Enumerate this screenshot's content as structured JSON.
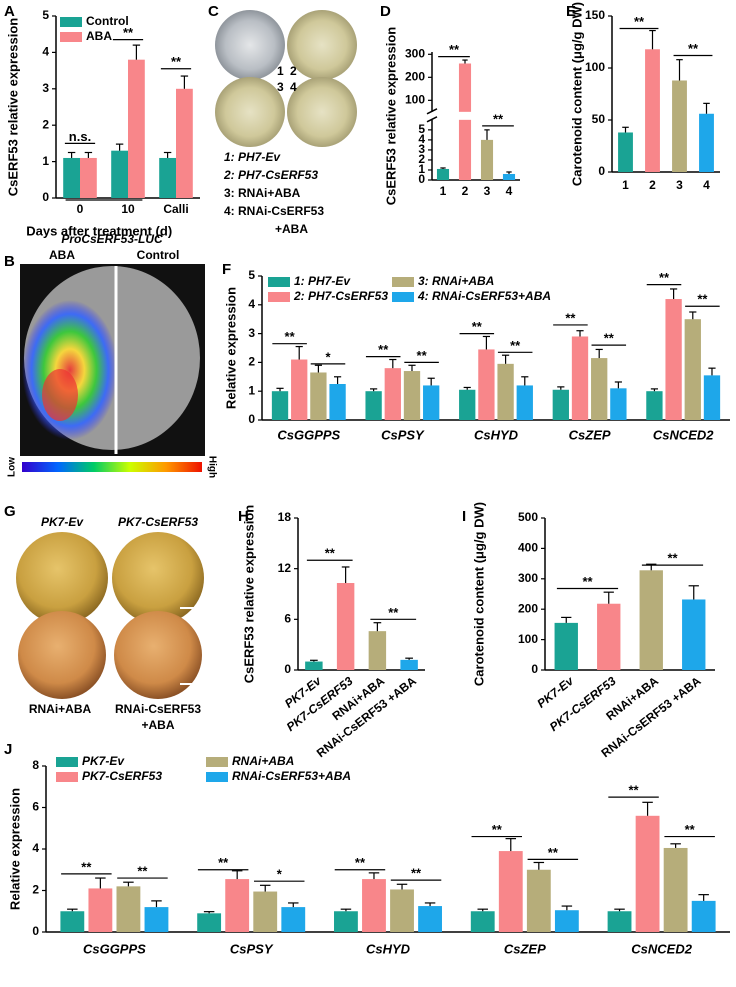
{
  "panels": {
    "B": {
      "panel": "B",
      "title": "ProCsERF53-LUC",
      "left": "ABA",
      "right": "Control",
      "scale_low": "Low",
      "scale_high": "High"
    },
    "C": {
      "panel": "C",
      "plate_numbers": [
        "1",
        "2",
        "3",
        "4"
      ],
      "legend": [
        "1: PH7-Ev",
        "2: PH7-CsERF53",
        "3: RNAi+ABA",
        "4: RNAi-CsERF53",
        "+ABA"
      ]
    },
    "G": {
      "panel": "G",
      "labels": [
        "PK7-Ev",
        "PK7-CsERF53",
        "RNAi+ABA",
        "RNAi-CsERF53",
        "+ABA"
      ]
    }
  },
  "chart_data": [
    {
      "panel": "A",
      "type": "bar",
      "categories": [
        "0",
        "10",
        "Calli"
      ],
      "xlabel": "Days after treatment (d)",
      "ylabel": "CsERF53 relative expression",
      "ylim": [
        0,
        5
      ],
      "yticks": [
        0,
        1,
        2,
        3,
        4,
        5
      ],
      "series": [
        {
          "name": "Control",
          "color": "#1aa394",
          "values": [
            1.1,
            1.3,
            1.1
          ],
          "errors": [
            0.15,
            0.18,
            0.15
          ]
        },
        {
          "name": "ABA",
          "color": "#f8868a",
          "values": [
            1.1,
            3.8,
            3.0
          ],
          "errors": [
            0.15,
            0.4,
            0.35
          ]
        }
      ],
      "annotations": [
        "n.s.",
        "**",
        "**"
      ]
    },
    {
      "panel": "D",
      "type": "bar",
      "categories": [
        "1",
        "2",
        "3",
        "4"
      ],
      "ylabel": "CsERF53 relative expression",
      "ylim": [
        0,
        310
      ],
      "axis_break": [
        6,
        50
      ],
      "yticks": [
        0,
        1,
        2,
        3,
        4,
        5,
        100,
        200,
        300
      ],
      "series": [
        {
          "colors": [
            "#1aa394",
            "#f8868a",
            "#b6ad7a",
            "#1ea7ea"
          ],
          "values": [
            1.1,
            260,
            4.0,
            0.6
          ],
          "errors": [
            0.1,
            15,
            1.0,
            0.2
          ]
        }
      ],
      "annotations": [
        "**",
        "**"
      ]
    },
    {
      "panel": "E",
      "type": "bar",
      "categories": [
        "1",
        "2",
        "3",
        "4"
      ],
      "ylabel": "Carotenoid content (μg/g DW)",
      "ylim": [
        0,
        150
      ],
      "yticks": [
        0,
        50,
        100,
        150
      ],
      "series": [
        {
          "colors": [
            "#1aa394",
            "#f8868a",
            "#b6ad7a",
            "#1ea7ea"
          ],
          "values": [
            38,
            118,
            88,
            56
          ],
          "errors": [
            5,
            18,
            20,
            10
          ]
        }
      ],
      "annotations": [
        "**",
        "**"
      ]
    },
    {
      "panel": "F",
      "type": "bar",
      "categories": [
        "CsGGPPS",
        "CsPSY",
        "CsHYD",
        "CsZEP",
        "CsNCED2"
      ],
      "ylabel": "Relative expression",
      "ylim": [
        0,
        5
      ],
      "yticks": [
        0,
        1,
        2,
        3,
        4,
        5
      ],
      "series": [
        {
          "name": "1: PH7-Ev",
          "color": "#1aa394",
          "values": [
            1.0,
            1.0,
            1.05,
            1.05,
            1.0
          ],
          "errors": [
            0.1,
            0.08,
            0.08,
            0.1,
            0.08
          ]
        },
        {
          "name": "2: PH7-CsERF53",
          "color": "#f8868a",
          "values": [
            2.1,
            1.8,
            2.45,
            2.9,
            4.2
          ],
          "errors": [
            0.45,
            0.3,
            0.45,
            0.2,
            0.35
          ]
        },
        {
          "name": "3: RNAi+ABA",
          "color": "#b6ad7a",
          "values": [
            1.65,
            1.7,
            1.95,
            2.15,
            3.5
          ],
          "errors": [
            0.25,
            0.2,
            0.3,
            0.3,
            0.25
          ]
        },
        {
          "name": "4: RNAi-CsERF53+ABA",
          "color": "#1ea7ea",
          "values": [
            1.25,
            1.2,
            1.2,
            1.1,
            1.55
          ],
          "errors": [
            0.25,
            0.25,
            0.3,
            0.22,
            0.25
          ]
        }
      ],
      "annotations": [
        "**",
        "*",
        "**",
        "**",
        "**",
        "**",
        "**",
        "**",
        "**",
        "**"
      ]
    },
    {
      "panel": "H",
      "type": "bar",
      "categories": [
        "PK7-Ev",
        "PK7-CsERF53",
        "RNAi+ABA",
        "RNAi-CsERF53 +ABA"
      ],
      "ylabel": "CsERF53 relative expression",
      "ylim": [
        0,
        18
      ],
      "yticks": [
        0,
        6,
        12,
        18
      ],
      "series": [
        {
          "colors": [
            "#1aa394",
            "#f8868a",
            "#b6ad7a",
            "#1ea7ea"
          ],
          "values": [
            1.0,
            10.3,
            4.6,
            1.2
          ],
          "errors": [
            0.15,
            1.9,
            1.0,
            0.2
          ]
        }
      ],
      "annotations": [
        "**",
        "**"
      ]
    },
    {
      "panel": "I",
      "type": "bar",
      "categories": [
        "PK7-Ev",
        "PK7-CsERF53",
        "RNAi+ABA",
        "RNAi-CsERF53 +ABA"
      ],
      "ylabel": "Carotenoid content (μg/g DW)",
      "ylim": [
        0,
        500
      ],
      "yticks": [
        0,
        100,
        200,
        300,
        400,
        500
      ],
      "series": [
        {
          "colors": [
            "#1aa394",
            "#f8868a",
            "#b6ad7a",
            "#1ea7ea"
          ],
          "values": [
            155,
            218,
            328,
            232
          ],
          "errors": [
            18,
            38,
            20,
            45
          ]
        }
      ],
      "annotations": [
        "**",
        "**"
      ]
    },
    {
      "panel": "J",
      "type": "bar",
      "categories": [
        "CsGGPPS",
        "CsPSY",
        "CsHYD",
        "CsZEP",
        "CsNCED2"
      ],
      "ylabel": "Relative expression",
      "ylim": [
        0,
        8
      ],
      "yticks": [
        0,
        2,
        4,
        6,
        8
      ],
      "series": [
        {
          "name": "PK7-Ev",
          "color": "#1aa394",
          "values": [
            1.0,
            0.9,
            1.0,
            1.0,
            1.0
          ],
          "errors": [
            0.1,
            0.08,
            0.1,
            0.1,
            0.1
          ]
        },
        {
          "name": "PK7-CsERF53",
          "color": "#f8868a",
          "values": [
            2.1,
            2.55,
            2.55,
            3.9,
            5.6
          ],
          "errors": [
            0.5,
            0.4,
            0.3,
            0.6,
            0.65
          ]
        },
        {
          "name": "RNAi+ABA",
          "color": "#b6ad7a",
          "values": [
            2.2,
            1.95,
            2.05,
            3.0,
            4.05
          ],
          "errors": [
            0.2,
            0.3,
            0.25,
            0.35,
            0.2
          ]
        },
        {
          "name": "RNAi-CsERF53+ABA",
          "color": "#1ea7ea",
          "values": [
            1.2,
            1.2,
            1.25,
            1.05,
            1.5
          ],
          "errors": [
            0.3,
            0.2,
            0.15,
            0.2,
            0.3
          ]
        }
      ],
      "annotations": [
        "**",
        "**",
        "**",
        "*",
        "**",
        "**",
        "**",
        "**",
        "**",
        "**"
      ]
    }
  ]
}
